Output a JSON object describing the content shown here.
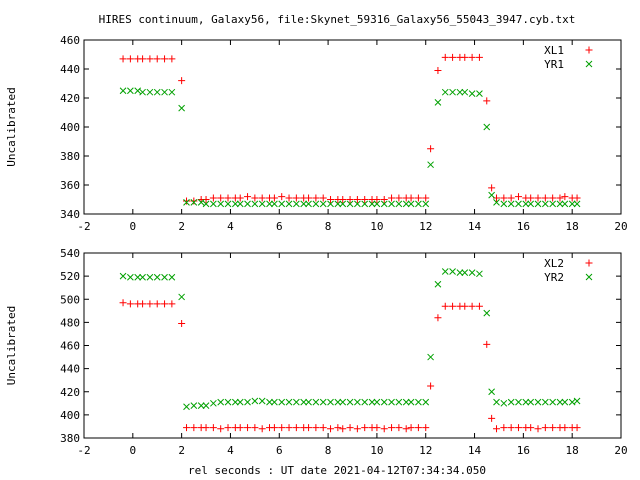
{
  "figure": {
    "title": "HIRES continuum, Galaxy56, file:Skynet_59316_Galaxy56_55043_3947.cyb.txt",
    "xlabel": "rel seconds : UT date 2021-04-12T07:34:34.050"
  },
  "chart_data": [
    {
      "type": "scatter",
      "ylabel": "Uncalibrated",
      "xlim": [
        -2,
        20
      ],
      "ylim": [
        340,
        460
      ],
      "xticks": [
        -2,
        0,
        2,
        4,
        6,
        8,
        10,
        12,
        14,
        16,
        18,
        20
      ],
      "yticks": [
        340,
        360,
        380,
        400,
        420,
        440,
        460
      ],
      "legend_position": "top-right",
      "grid": false,
      "series": [
        {
          "name": "XL1",
          "marker": "+",
          "color": "#ff0000",
          "x": [
            -0.4,
            -0.1,
            0.2,
            0.4,
            0.7,
            1.0,
            1.3,
            1.6,
            2.0,
            2.2,
            2.5,
            2.8,
            3.0,
            3.3,
            3.6,
            3.9,
            4.2,
            4.4,
            4.7,
            5.0,
            5.3,
            5.6,
            5.8,
            6.1,
            6.4,
            6.7,
            7.0,
            7.2,
            7.5,
            7.8,
            8.1,
            8.4,
            8.6,
            8.9,
            9.2,
            9.5,
            9.8,
            10.0,
            10.3,
            10.6,
            10.9,
            11.2,
            11.4,
            11.7,
            12.0,
            12.2,
            12.5,
            12.8,
            13.1,
            13.4,
            13.6,
            13.9,
            14.2,
            14.5,
            14.7,
            14.9,
            15.2,
            15.5,
            15.8,
            16.1,
            16.3,
            16.6,
            16.9,
            17.2,
            17.5,
            17.7,
            18.0,
            18.2
          ],
          "y": [
            447,
            447,
            447,
            447,
            447,
            447,
            447,
            447,
            432,
            349,
            349,
            350,
            350,
            351,
            351,
            351,
            351,
            351,
            352,
            351,
            351,
            351,
            351,
            352,
            351,
            351,
            351,
            351,
            351,
            351,
            350,
            350,
            350,
            350,
            350,
            350,
            350,
            350,
            350,
            351,
            351,
            351,
            351,
            351,
            351,
            385,
            439,
            448,
            448,
            448,
            448,
            448,
            448,
            418,
            358,
            351,
            351,
            351,
            352,
            351,
            351,
            351,
            351,
            351,
            351,
            352,
            351,
            351
          ]
        },
        {
          "name": "YR1",
          "marker": "x",
          "color": "#00a000",
          "x": [
            -0.4,
            -0.1,
            0.2,
            0.4,
            0.7,
            1.0,
            1.3,
            1.6,
            2.0,
            2.2,
            2.5,
            2.8,
            3.0,
            3.3,
            3.6,
            3.9,
            4.2,
            4.4,
            4.7,
            5.0,
            5.3,
            5.6,
            5.8,
            6.1,
            6.4,
            6.7,
            7.0,
            7.2,
            7.5,
            7.8,
            8.1,
            8.4,
            8.6,
            8.9,
            9.2,
            9.5,
            9.8,
            10.0,
            10.3,
            10.6,
            10.9,
            11.2,
            11.4,
            11.7,
            12.0,
            12.2,
            12.5,
            12.8,
            13.1,
            13.4,
            13.6,
            13.9,
            14.2,
            14.5,
            14.7,
            14.9,
            15.2,
            15.5,
            15.8,
            16.1,
            16.3,
            16.6,
            16.9,
            17.2,
            17.5,
            17.7,
            18.0,
            18.2
          ],
          "y": [
            425,
            425,
            425,
            424,
            424,
            424,
            424,
            424,
            413,
            348,
            348,
            348,
            347,
            347,
            347,
            347,
            347,
            347,
            347,
            347,
            347,
            347,
            347,
            347,
            347,
            347,
            347,
            347,
            347,
            347,
            347,
            347,
            347,
            347,
            347,
            347,
            347,
            347,
            347,
            347,
            347,
            347,
            347,
            347,
            347,
            374,
            417,
            424,
            424,
            424,
            424,
            423,
            423,
            400,
            353,
            348,
            347,
            347,
            347,
            347,
            347,
            347,
            347,
            347,
            347,
            347,
            347,
            347
          ]
        }
      ]
    },
    {
      "type": "scatter",
      "ylabel": "Uncalibrated",
      "xlim": [
        -2,
        20
      ],
      "ylim": [
        380,
        540
      ],
      "xticks": [
        -2,
        0,
        2,
        4,
        6,
        8,
        10,
        12,
        14,
        16,
        18,
        20
      ],
      "yticks": [
        380,
        400,
        420,
        440,
        460,
        480,
        500,
        520,
        540
      ],
      "legend_position": "top-right",
      "grid": false,
      "series": [
        {
          "name": "XL2",
          "marker": "+",
          "color": "#ff0000",
          "x": [
            -0.4,
            -0.1,
            0.2,
            0.4,
            0.7,
            1.0,
            1.3,
            1.6,
            2.0,
            2.2,
            2.5,
            2.8,
            3.0,
            3.3,
            3.6,
            3.9,
            4.2,
            4.4,
            4.7,
            5.0,
            5.3,
            5.6,
            5.8,
            6.1,
            6.4,
            6.7,
            7.0,
            7.2,
            7.5,
            7.8,
            8.1,
            8.4,
            8.6,
            8.9,
            9.2,
            9.5,
            9.8,
            10.0,
            10.3,
            10.6,
            10.9,
            11.2,
            11.4,
            11.7,
            12.0,
            12.2,
            12.5,
            12.8,
            13.1,
            13.4,
            13.6,
            13.9,
            14.2,
            14.5,
            14.7,
            14.9,
            15.2,
            15.5,
            15.8,
            16.1,
            16.3,
            16.6,
            16.9,
            17.2,
            17.5,
            17.7,
            18.0,
            18.2
          ],
          "y": [
            497,
            496,
            496,
            496,
            496,
            496,
            496,
            496,
            479,
            389,
            389,
            389,
            389,
            389,
            388,
            389,
            389,
            389,
            389,
            389,
            388,
            389,
            389,
            389,
            389,
            389,
            389,
            389,
            389,
            389,
            388,
            389,
            388,
            389,
            388,
            389,
            389,
            389,
            388,
            389,
            389,
            388,
            389,
            389,
            389,
            425,
            484,
            494,
            494,
            494,
            494,
            494,
            494,
            461,
            397,
            388,
            389,
            389,
            389,
            389,
            389,
            388,
            389,
            389,
            389,
            389,
            389,
            389
          ]
        },
        {
          "name": "YR2",
          "marker": "x",
          "color": "#00a000",
          "x": [
            -0.4,
            -0.1,
            0.2,
            0.4,
            0.7,
            1.0,
            1.3,
            1.6,
            2.0,
            2.2,
            2.5,
            2.8,
            3.0,
            3.3,
            3.6,
            3.9,
            4.2,
            4.4,
            4.7,
            5.0,
            5.3,
            5.6,
            5.8,
            6.1,
            6.4,
            6.7,
            7.0,
            7.2,
            7.5,
            7.8,
            8.1,
            8.4,
            8.6,
            8.9,
            9.2,
            9.5,
            9.8,
            10.0,
            10.3,
            10.6,
            10.9,
            11.2,
            11.4,
            11.7,
            12.0,
            12.2,
            12.5,
            12.8,
            13.1,
            13.4,
            13.6,
            13.9,
            14.2,
            14.5,
            14.7,
            14.9,
            15.2,
            15.5,
            15.8,
            16.1,
            16.3,
            16.6,
            16.9,
            17.2,
            17.5,
            17.7,
            18.0,
            18.2
          ],
          "y": [
            520,
            519,
            519,
            519,
            519,
            519,
            519,
            519,
            502,
            407,
            408,
            408,
            408,
            410,
            411,
            411,
            411,
            411,
            411,
            412,
            412,
            411,
            411,
            411,
            411,
            411,
            411,
            411,
            411,
            411,
            411,
            411,
            411,
            411,
            411,
            411,
            411,
            411,
            411,
            411,
            411,
            411,
            411,
            411,
            411,
            450,
            513,
            524,
            524,
            523,
            523,
            523,
            522,
            488,
            420,
            411,
            410,
            411,
            411,
            411,
            411,
            411,
            411,
            411,
            411,
            411,
            411,
            412
          ]
        }
      ]
    }
  ]
}
